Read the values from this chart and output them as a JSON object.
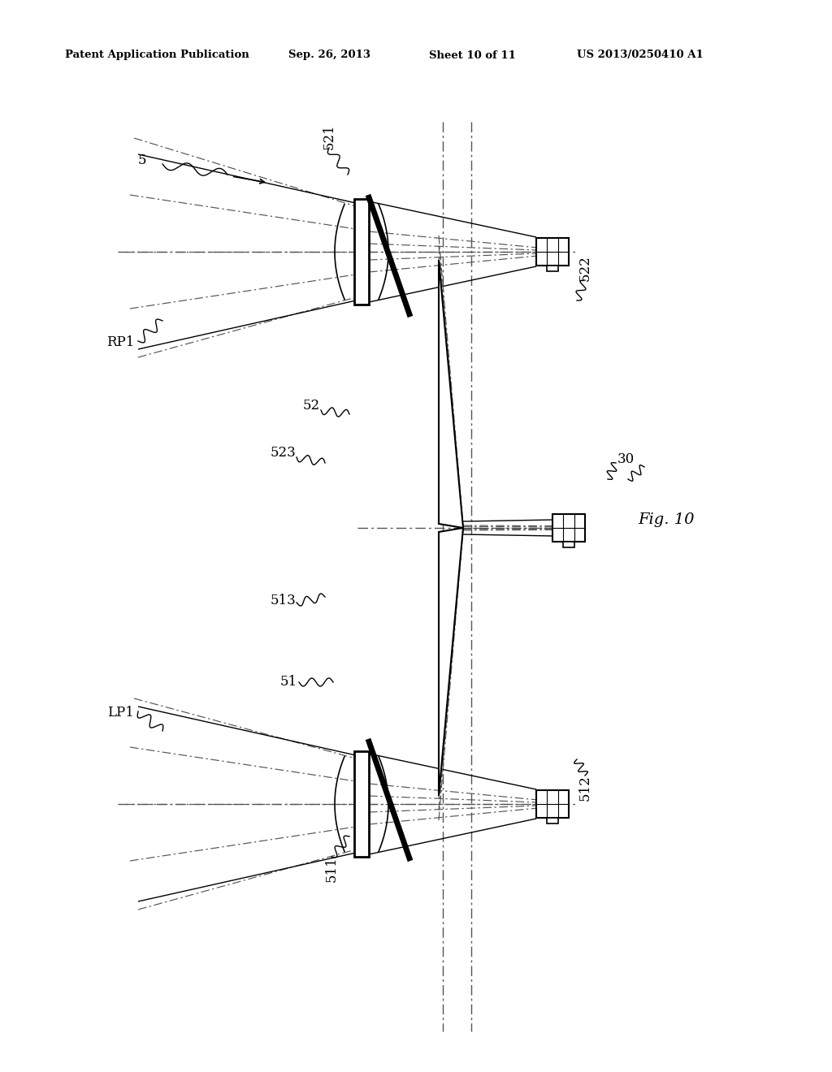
{
  "bg_color": "#ffffff",
  "header_text": "Patent Application Publication",
  "header_date": "Sep. 26, 2013",
  "header_sheet": "Sheet 10 of 11",
  "header_patent": "US 2013/0250410 A1",
  "fig_label": "Fig. 10"
}
